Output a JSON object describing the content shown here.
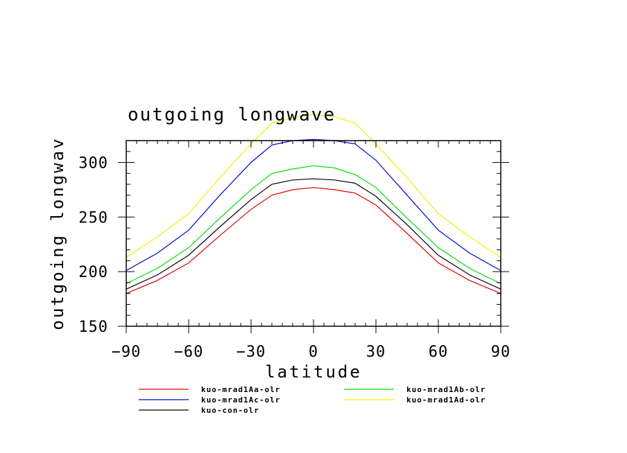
{
  "chart_data": {
    "type": "line",
    "title": "outgoing longwave",
    "xlabel": "latitude",
    "ylabel": "outgoing longwav",
    "xlim": [
      -90,
      90
    ],
    "ylim": [
      150,
      320
    ],
    "xticks": [
      "-90",
      "-60",
      "-30",
      "0",
      "30",
      "60",
      "90"
    ],
    "yticks": [
      "150",
      "200",
      "250",
      "300"
    ],
    "x": [
      -90,
      -75,
      -60,
      -45,
      -30,
      -20,
      -10,
      0,
      10,
      20,
      30,
      45,
      60,
      75,
      90
    ],
    "series": [
      {
        "name": "kuo-mrad1Aa-olr",
        "color": "#dd0000",
        "values": [
          180,
          192,
          208,
          233,
          257,
          270,
          275,
          277,
          275,
          272,
          261,
          235,
          208,
          192,
          180
        ]
      },
      {
        "name": "kuo-mrad1Ab-olr",
        "color": "#00dd00",
        "values": [
          189,
          203,
          222,
          249,
          275,
          290,
          294,
          297,
          295,
          289,
          277,
          249,
          222,
          203,
          189
        ]
      },
      {
        "name": "kuo-mrad1Ac-olr",
        "color": "#0000cc",
        "values": [
          201,
          217,
          238,
          270,
          300,
          316,
          320,
          321,
          320,
          317,
          302,
          270,
          238,
          217,
          201
        ]
      },
      {
        "name": "kuo-mrad1Ad-olr",
        "color": "#eeee00",
        "values": [
          213,
          232,
          253,
          286,
          317,
          336,
          341,
          344,
          342,
          336,
          317,
          286,
          253,
          232,
          213
        ]
      },
      {
        "name": "kuo-con-olr",
        "color": "#000000",
        "values": [
          184,
          197,
          215,
          241,
          266,
          280,
          284,
          285,
          284,
          281,
          269,
          243,
          215,
          197,
          184
        ]
      }
    ],
    "legend": "bottom"
  }
}
